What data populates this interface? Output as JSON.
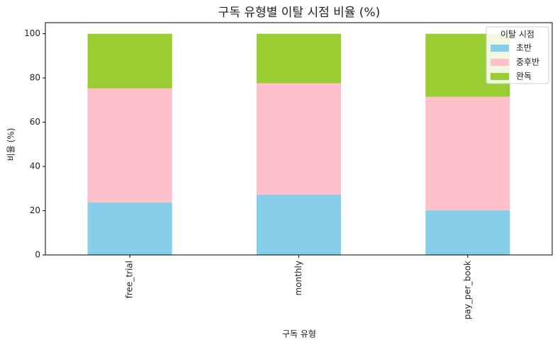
{
  "chart_data": {
    "type": "stacked_bar",
    "title": "구독 유형별 이탈 시점 비율 (%)",
    "x_label": "구독 유형",
    "y_label": "비율 (%)",
    "categories": [
      "free_trial",
      "monthly",
      "pay_per_book"
    ],
    "series": [
      {
        "name": "초반",
        "color": "#87ceeb",
        "values": [
          23.7,
          27.2,
          20.2
        ]
      },
      {
        "name": "중후반",
        "color": "#ffc0cb",
        "values": [
          51.6,
          50.4,
          51.3
        ]
      },
      {
        "name": "완독",
        "color": "#9acd32",
        "values": [
          24.7,
          22.4,
          28.5
        ]
      }
    ],
    "legend_title": "이탈 시점",
    "legend": "upper right",
    "ylim": [
      0,
      105
    ],
    "yticks": [
      0,
      20,
      40,
      60,
      80,
      100
    ]
  }
}
